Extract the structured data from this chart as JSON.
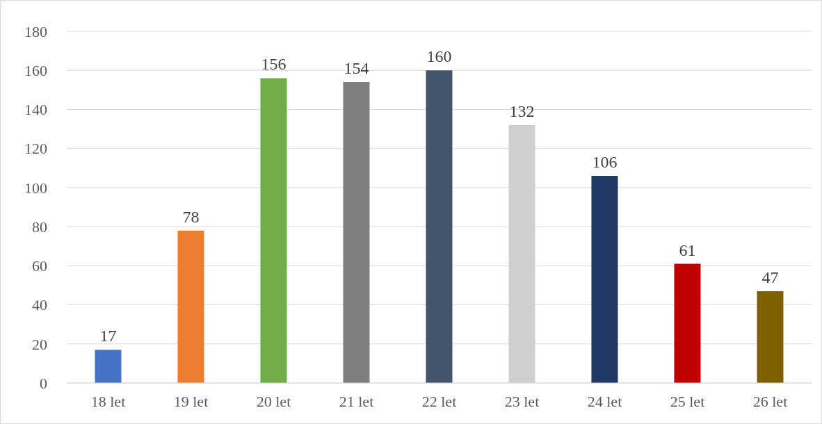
{
  "chart_data": {
    "type": "bar",
    "categories": [
      "18 let",
      "19 let",
      "20 let",
      "21 let",
      "22 let",
      "23 let",
      "24 let",
      "25 let",
      "26 let"
    ],
    "values": [
      17,
      78,
      156,
      154,
      160,
      132,
      106,
      61,
      47
    ],
    "colors": [
      "#4472c4",
      "#ed7d31",
      "#70ad47",
      "#7f7f7f",
      "#44546a",
      "#d0cece",
      "#203864",
      "#c00000",
      "#7f6000"
    ],
    "ylim": [
      0,
      180
    ],
    "yticks": [
      0,
      20,
      40,
      60,
      80,
      100,
      120,
      140,
      160,
      180
    ],
    "grid": "y",
    "data_labels": true,
    "legend": false
  }
}
